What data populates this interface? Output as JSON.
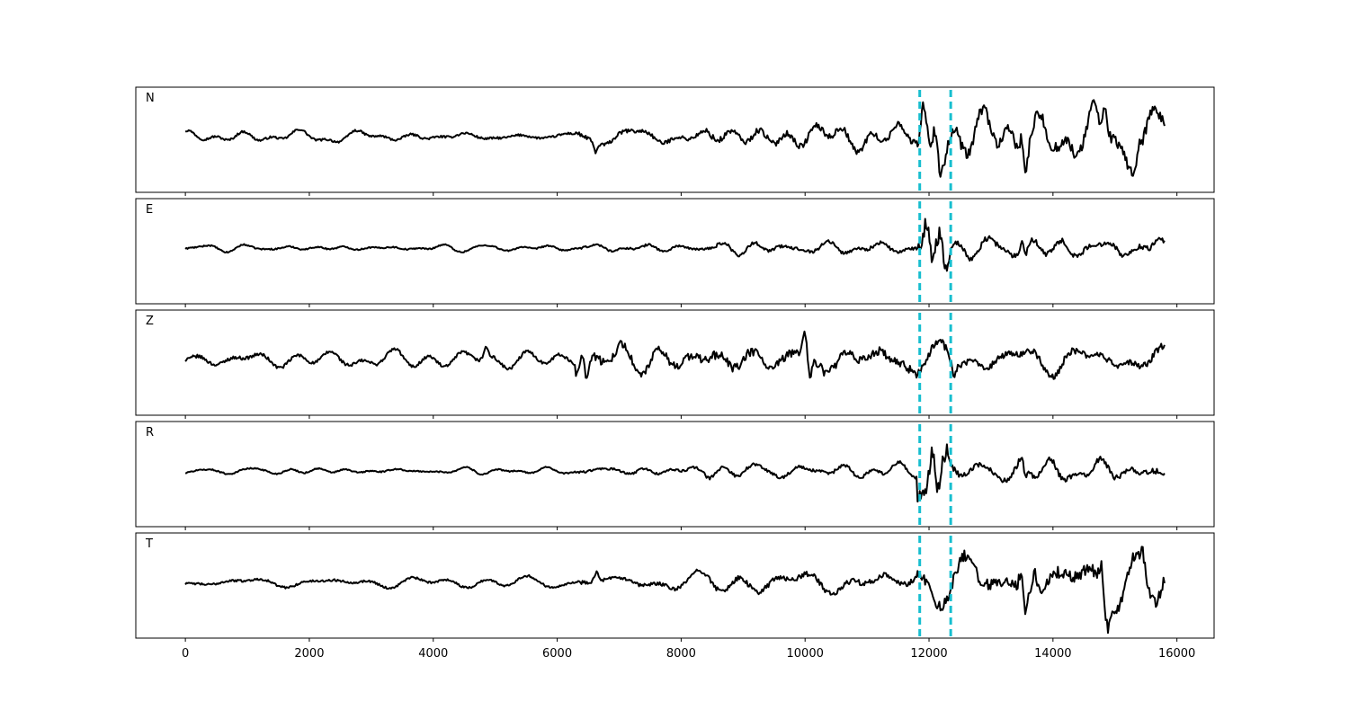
{
  "chart_data": {
    "type": "line",
    "xlim": [
      -800,
      16600
    ],
    "x_ticks": [
      0,
      2000,
      4000,
      6000,
      8000,
      10000,
      12000,
      14000,
      16000
    ],
    "x_tick_labels": [
      "0",
      "2000",
      "4000",
      "6000",
      "8000",
      "10000",
      "12000",
      "14000",
      "16000"
    ],
    "samples": 15800,
    "pick_lines": [
      11850,
      12350
    ],
    "pick_color": "#17becf",
    "trace_color": "#000000",
    "x_axis_on_last_panel_only": true,
    "grid": false,
    "panels": [
      {
        "label": "N",
        "bursts": [
          [
            0,
            6300,
            0.08
          ],
          [
            6300,
            8400,
            0.14
          ],
          [
            8400,
            11800,
            0.22
          ],
          [
            11800,
            12300,
            0.55
          ],
          [
            12300,
            15800,
            0.45
          ]
        ],
        "peaks": [
          [
            6620,
            -0.18
          ],
          [
            11900,
            0.3
          ],
          [
            12000,
            -0.42
          ],
          [
            12120,
            0.38
          ],
          [
            12180,
            -0.3
          ],
          [
            13500,
            0.4
          ],
          [
            13560,
            -0.38
          ],
          [
            14750,
            -0.32
          ],
          [
            14850,
            0.3
          ],
          [
            15400,
            0.26
          ]
        ]
      },
      {
        "label": "E",
        "bursts": [
          [
            0,
            6300,
            0.05
          ],
          [
            6300,
            8400,
            0.08
          ],
          [
            8400,
            11800,
            0.12
          ],
          [
            11800,
            12300,
            0.5
          ],
          [
            12300,
            15800,
            0.2
          ]
        ],
        "peaks": [
          [
            11950,
            0.25
          ],
          [
            12050,
            -0.42
          ],
          [
            12180,
            0.45
          ],
          [
            12300,
            -0.3
          ],
          [
            13500,
            0.22
          ],
          [
            13560,
            -0.16
          ]
        ]
      },
      {
        "label": "Z",
        "bursts": [
          [
            0,
            6300,
            0.12
          ],
          [
            6300,
            8400,
            0.3
          ],
          [
            8400,
            11800,
            0.35
          ],
          [
            11800,
            12300,
            0.3
          ],
          [
            12300,
            15800,
            0.25
          ]
        ],
        "peaks": [
          [
            4850,
            0.22
          ],
          [
            6400,
            0.32
          ],
          [
            6480,
            -0.3
          ],
          [
            10000,
            0.38
          ],
          [
            10080,
            -0.45
          ],
          [
            12400,
            -0.25
          ]
        ]
      },
      {
        "label": "R",
        "bursts": [
          [
            0,
            6300,
            0.05
          ],
          [
            6300,
            8400,
            0.08
          ],
          [
            8400,
            11800,
            0.12
          ],
          [
            11800,
            12300,
            0.55
          ],
          [
            12300,
            15800,
            0.2
          ]
        ],
        "peaks": [
          [
            11950,
            -0.2
          ],
          [
            12050,
            0.4
          ],
          [
            12150,
            -0.42
          ],
          [
            12300,
            0.2
          ],
          [
            13500,
            0.15
          ],
          [
            13550,
            -0.22
          ]
        ]
      },
      {
        "label": "T",
        "bursts": [
          [
            0,
            6300,
            0.08
          ],
          [
            6300,
            8400,
            0.14
          ],
          [
            8400,
            11800,
            0.2
          ],
          [
            11800,
            12300,
            0.35
          ],
          [
            12300,
            15800,
            0.45
          ]
        ],
        "peaks": [
          [
            6630,
            0.18
          ],
          [
            13480,
            0.35
          ],
          [
            13550,
            -0.42
          ],
          [
            13700,
            0.4
          ],
          [
            14780,
            0.42
          ],
          [
            14880,
            -0.4
          ],
          [
            15450,
            0.36
          ]
        ]
      }
    ]
  }
}
